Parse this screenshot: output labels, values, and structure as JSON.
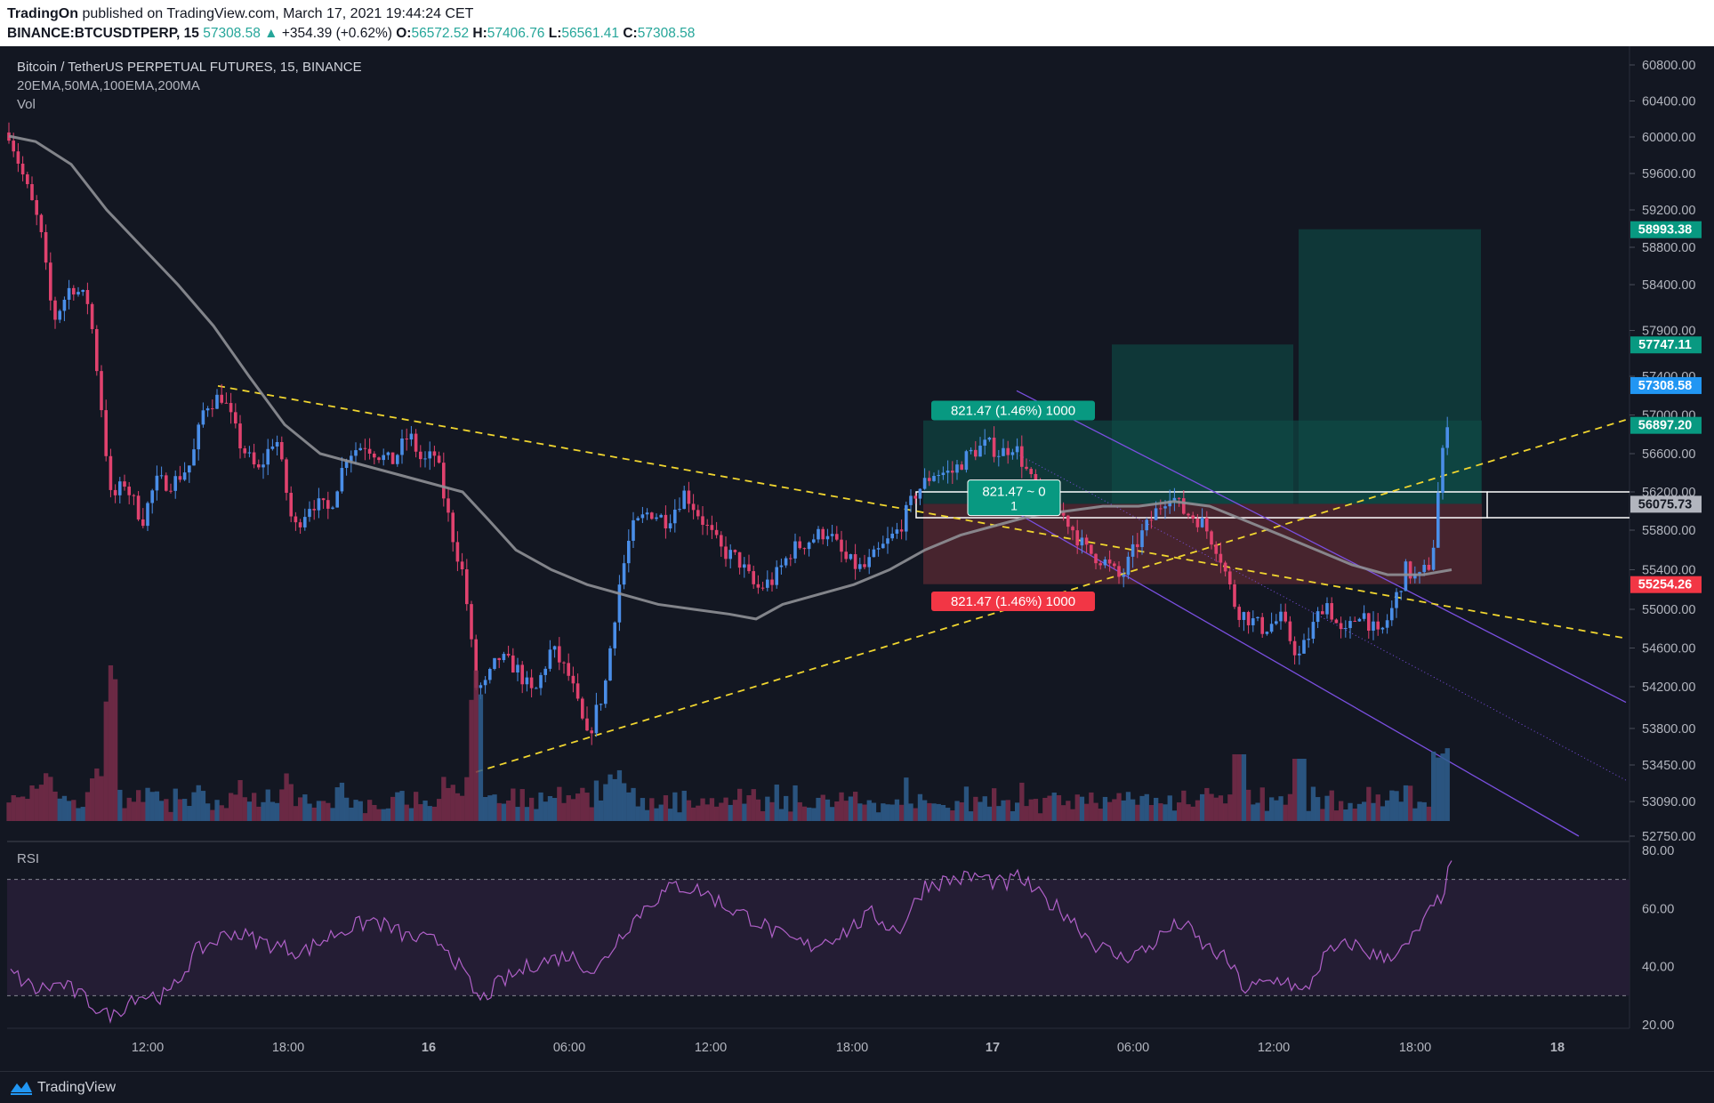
{
  "header": {
    "author": "TradingOn",
    "published_text": "published on TradingView.com, March 17, 2021 19:44:24 CET",
    "symbol": "BINANCE:BTCUSDTPERP, 15",
    "last": "57308.58",
    "change_arrow": "▲",
    "change": "+354.39 (+0.62%)",
    "o_label": "O:",
    "o": "56572.52",
    "h_label": "H:",
    "h": "57406.76",
    "l_label": "L:",
    "l": "56561.41",
    "c_label": "C:",
    "c": "57308.58"
  },
  "chart": {
    "title": "Bitcoin / TetherUS PERPETUAL FUTURES, 15, BINANCE",
    "indicators_label": "20EMA,50MA,100EMA,200MA",
    "volume_label": "Vol",
    "rsi_label": "RSI",
    "colors": {
      "background": "#131722",
      "up": "#4a8ee8",
      "down": "#e0426e",
      "ma_line": "#8f9096",
      "trendline": "#f0d52f",
      "channel": "#7a4fe0",
      "target_zone": "#0d4c47",
      "stop_zone": "#5a2a33",
      "rsi_line": "#b060c8",
      "rsi_band": "#241d34"
    },
    "price_axis": [
      "60800.00",
      "60400.00",
      "60000.00",
      "59600.00",
      "59200.00",
      "58800.00",
      "58400.00",
      "57900.00",
      "57400.00",
      "57000.00",
      "56600.00",
      "56200.00",
      "55800.00",
      "55400.00",
      "55000.00",
      "54600.00",
      "54200.00",
      "53800.00",
      "53450.00",
      "53090.00",
      "52750.00"
    ],
    "rsi_axis": [
      "80.00",
      "60.00",
      "40.00",
      "20.00"
    ],
    "time_axis": [
      "12:00",
      "18:00",
      "16",
      "06:00",
      "12:00",
      "18:00",
      "17",
      "06:00",
      "12:00",
      "18:00",
      "18"
    ],
    "price_badges": [
      {
        "value": "58993.38",
        "color": "#089981"
      },
      {
        "value": "57747.11",
        "color": "#089981"
      },
      {
        "value": "57308.58",
        "color": "#2196f3"
      },
      {
        "value": "56897.20",
        "color": "#089981"
      },
      {
        "value": "56075.73",
        "color": "#b2b5be"
      },
      {
        "value": "55254.26",
        "color": "#f23645"
      }
    ],
    "position_labels": {
      "target": "821.47 (1.46%) 1000",
      "stop": "821.47 (1.46%) 1000",
      "center_line1": "821.47 ~ 0",
      "center_line2": "1"
    },
    "chart_data": {
      "type": "candlestick",
      "title": "Bitcoin / TetherUS PERPETUAL FUTURES, 15, BINANCE",
      "price_range": [
        52750,
        60800
      ],
      "rsi_range": [
        20,
        80
      ],
      "rsi_levels": [
        70,
        30
      ],
      "series": [
        {
          "name": "20EMA,50MA,100EMA,200MA",
          "approx_points": [
            [
              15,
              60010
            ],
            [
              16,
              55800
            ],
            [
              16.5,
              55300
            ],
            [
              17,
              56000
            ],
            [
              17.5,
              55900
            ],
            [
              17.8,
              55350
            ]
          ]
        }
      ],
      "key_levels": {
        "entry": 56075.73,
        "target": 56897.2,
        "stop": 55254.26,
        "target_2": 57747.11,
        "target_3": 58993.38,
        "last_price": 57308.58
      }
    }
  },
  "footer": {
    "brand": "TradingView"
  }
}
